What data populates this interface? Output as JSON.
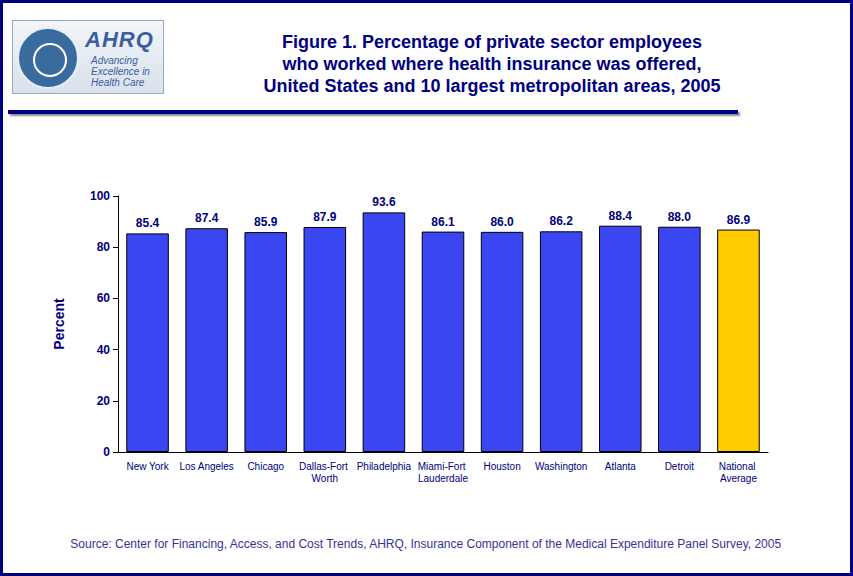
{
  "chart_data": {
    "type": "bar",
    "title": "Figure 1. Percentage of private sector employees\nwho worked where health insurance was offered,\nUnited States and 10 largest metropolitan areas, 2005",
    "y_label": "Percent",
    "source": "Source: Center for Financing, Access, and Cost Trends, AHRQ, Insurance Component of the Medical Expenditure Panel Survey, 2005",
    "logo": [
      "AHRQ",
      "Advancing Excellence in Health Care"
    ],
    "categories": [
      "New York",
      "Los Angeles",
      "Chicago",
      "Dallas-Fort Worth",
      "Philadelphia",
      "Miami-Fort Lauderdale",
      "Houston",
      "Washington",
      "Atlanta",
      "Detroit",
      "National Average"
    ],
    "values": [
      85.4,
      87.4,
      85.9,
      87.9,
      93.6,
      86.1,
      86.0,
      86.2,
      88.4,
      88.0,
      86.9
    ],
    "value_labels": [
      "85.4",
      "87.4",
      "85.9",
      "87.9",
      "93.6",
      "86.1",
      "86.0",
      "86.2",
      "88.4",
      "88.0",
      "86.9"
    ],
    "colors": [
      "#3a46f2",
      "#3a46f2",
      "#3a46f2",
      "#3a46f2",
      "#3a46f2",
      "#3a46f2",
      "#3a46f2",
      "#3a46f2",
      "#3a46f2",
      "#3a46f2",
      "#ffcc00"
    ],
    "ylim": [
      0,
      100
    ],
    "yticks": [
      0,
      20,
      40,
      60,
      80,
      100
    ],
    "data_labels": true,
    "grid": false
  }
}
